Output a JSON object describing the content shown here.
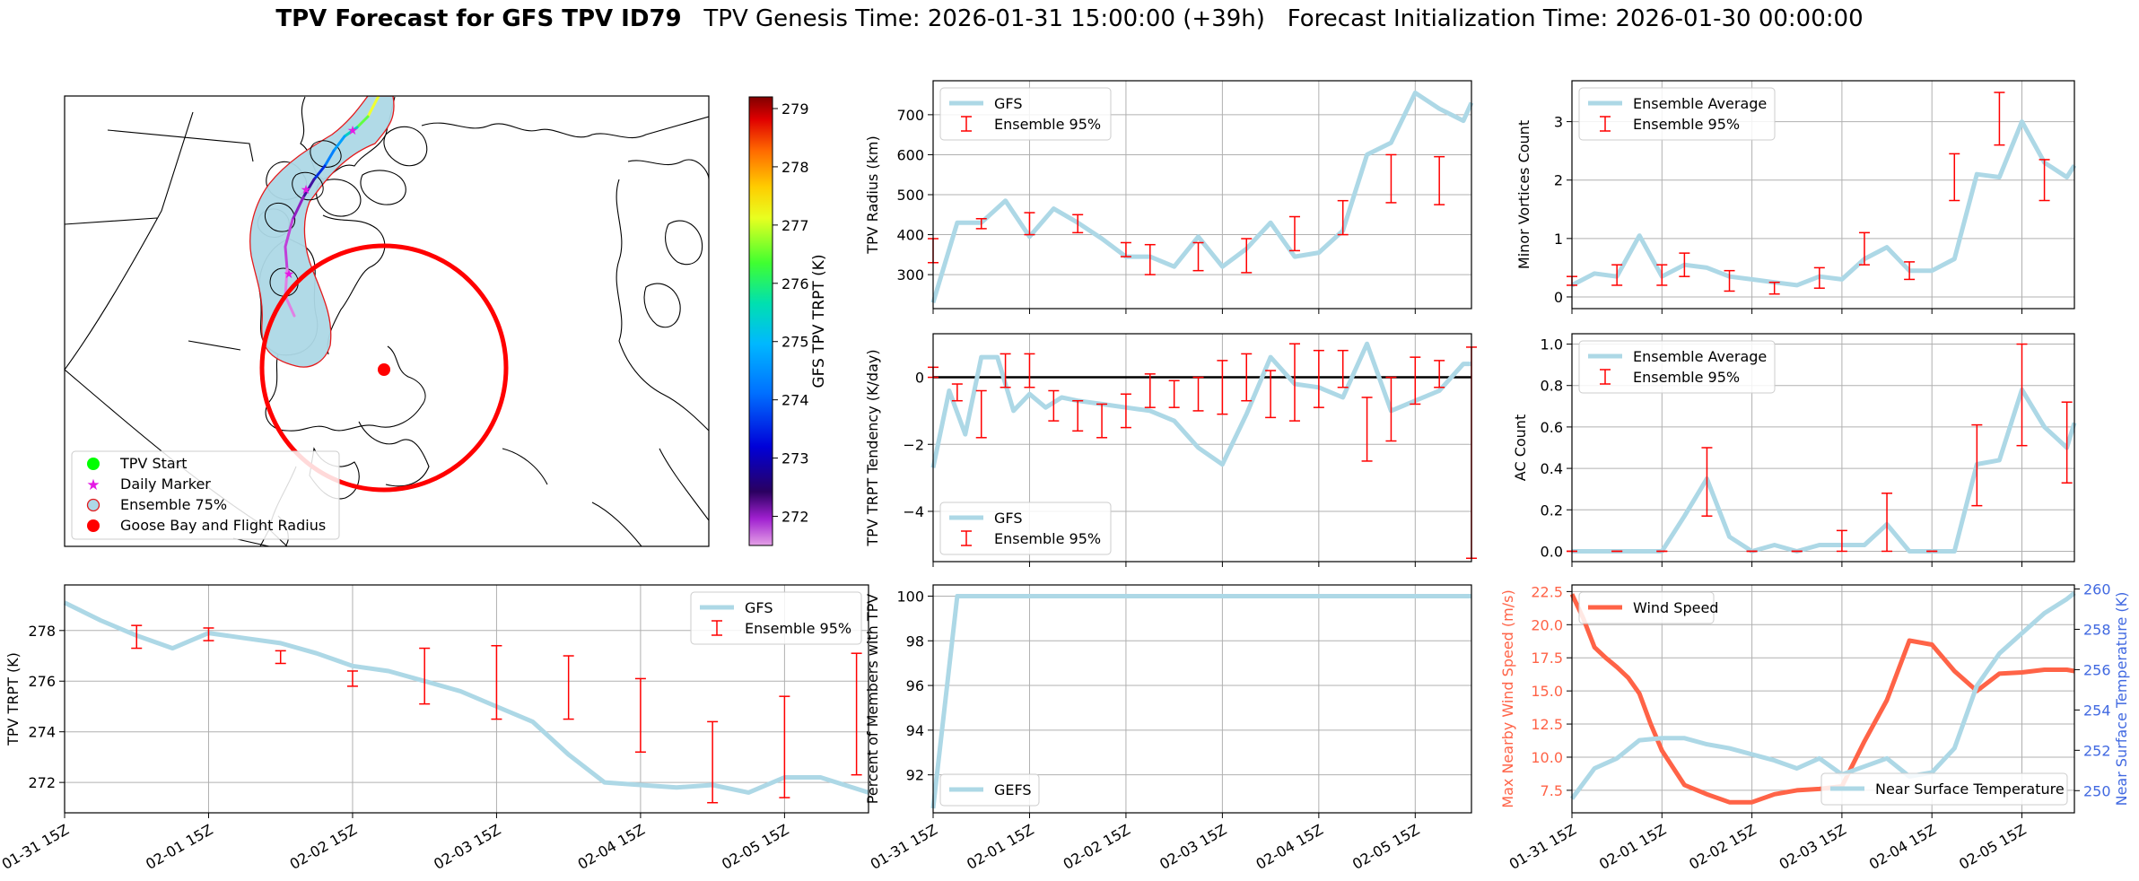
{
  "figure": {
    "title_bold": "TPV Forecast for GFS TPV ID79",
    "title_genesis": "TPV Genesis Time: 2026-01-31 15:00:00 (+39h)",
    "title_init": "Forecast Initialization Time: 2026-01-30 00:00:00"
  },
  "colors": {
    "series": "#add8e6",
    "error": "#ff0000",
    "wind": "#ff6347",
    "temp_axis": "#4169e1",
    "zero_line": "#000000"
  },
  "map": {
    "colorbar_label": "GFS TPV TRPT (K)",
    "colorbar_ticks": [
      "272",
      "273",
      "274",
      "275",
      "276",
      "277",
      "278",
      "279"
    ],
    "colorbar_range": [
      271.5,
      279.2
    ],
    "legend": [
      "TPV Start",
      "Daily Marker",
      "Ensemble 75%",
      "Goose Bay and Flight Radius"
    ]
  },
  "chart_data": [
    {
      "id": "trpt",
      "type": "line",
      "ylabel": "TPV TRPT (K)",
      "ylim": [
        270.8,
        279.8
      ],
      "yticks": [
        "272",
        "274",
        "276",
        "278"
      ],
      "xlim": [
        0,
        134
      ],
      "xtick_positions": [
        0,
        24,
        48,
        72,
        96,
        120
      ],
      "xtick_labels": [
        "01-31 15Z",
        "02-01 15Z",
        "02-02 15Z",
        "02-03 15Z",
        "02-04 15Z",
        "02-05 15Z"
      ],
      "legend": [
        "GFS",
        "Ensemble 95%"
      ],
      "series": [
        {
          "name": "GFS",
          "x": [
            0,
            6,
            12,
            18,
            24,
            30,
            36,
            42,
            48,
            54,
            60,
            66,
            72,
            78,
            84,
            90,
            96,
            102,
            108,
            114,
            120,
            126,
            134
          ],
          "values": [
            279.1,
            278.4,
            277.8,
            277.3,
            277.9,
            277.7,
            277.5,
            277.1,
            276.6,
            276.4,
            276.0,
            275.6,
            275.0,
            274.4,
            273.1,
            272.0,
            271.9,
            271.8,
            271.9,
            271.6,
            272.2,
            272.2,
            271.6
          ]
        }
      ],
      "errorbars": [
        {
          "x": 12,
          "lo": 277.3,
          "hi": 278.2
        },
        {
          "x": 24,
          "lo": 277.6,
          "hi": 278.1
        },
        {
          "x": 36,
          "lo": 276.7,
          "hi": 277.2
        },
        {
          "x": 48,
          "lo": 275.8,
          "hi": 276.4
        },
        {
          "x": 60,
          "lo": 275.1,
          "hi": 277.3
        },
        {
          "x": 72,
          "lo": 274.5,
          "hi": 277.4
        },
        {
          "x": 84,
          "lo": 274.5,
          "hi": 277.0
        },
        {
          "x": 96,
          "lo": 273.2,
          "hi": 276.1
        },
        {
          "x": 108,
          "lo": 271.2,
          "hi": 274.4
        },
        {
          "x": 120,
          "lo": 271.4,
          "hi": 275.4
        },
        {
          "x": 132,
          "lo": 272.3,
          "hi": 277.1
        }
      ]
    },
    {
      "id": "radius",
      "type": "line",
      "ylabel": "TPV Radius (km)",
      "ylim": [
        215,
        785
      ],
      "yticks": [
        "300",
        "400",
        "500",
        "600",
        "700"
      ],
      "xlim": [
        0,
        134
      ],
      "legend": [
        "GFS",
        "Ensemble 95%"
      ],
      "series": [
        {
          "name": "GFS",
          "x": [
            0,
            6,
            12,
            18,
            24,
            30,
            36,
            42,
            48,
            54,
            60,
            66,
            72,
            78,
            84,
            90,
            96,
            102,
            108,
            114,
            120,
            126,
            132,
            134
          ],
          "values": [
            230,
            430,
            430,
            485,
            395,
            465,
            430,
            390,
            345,
            345,
            320,
            395,
            320,
            365,
            430,
            345,
            355,
            410,
            600,
            630,
            755,
            715,
            685,
            730
          ]
        }
      ],
      "errorbars": [
        {
          "x": 0,
          "lo": 330,
          "hi": 390
        },
        {
          "x": 12,
          "lo": 415,
          "hi": 440
        },
        {
          "x": 24,
          "lo": 400,
          "hi": 455
        },
        {
          "x": 36,
          "lo": 405,
          "hi": 450
        },
        {
          "x": 48,
          "lo": 345,
          "hi": 380
        },
        {
          "x": 54,
          "lo": 300,
          "hi": 375
        },
        {
          "x": 66,
          "lo": 310,
          "hi": 380
        },
        {
          "x": 78,
          "lo": 305,
          "hi": 390
        },
        {
          "x": 90,
          "lo": 360,
          "hi": 445
        },
        {
          "x": 102,
          "lo": 400,
          "hi": 485
        },
        {
          "x": 114,
          "lo": 480,
          "hi": 600
        },
        {
          "x": 126,
          "lo": 475,
          "hi": 595
        }
      ]
    },
    {
      "id": "tendency",
      "type": "line",
      "ylabel": "TPV TRPT Tendency (K/day)",
      "ylim": [
        -5.5,
        1.3
      ],
      "yticks": [
        "−4",
        "−2",
        "0"
      ],
      "xlim": [
        0,
        134
      ],
      "legend": [
        "GFS",
        "Ensemble 95%"
      ],
      "zero_line": 0,
      "series": [
        {
          "name": "GFS",
          "x": [
            0,
            4,
            8,
            12,
            16,
            20,
            24,
            28,
            32,
            36,
            42,
            48,
            54,
            60,
            66,
            72,
            78,
            84,
            90,
            96,
            102,
            108,
            114,
            120,
            126,
            132,
            134
          ],
          "values": [
            -2.7,
            -0.4,
            -1.7,
            0.6,
            0.6,
            -1.0,
            -0.5,
            -0.9,
            -0.6,
            -0.7,
            -0.8,
            -0.9,
            -1.0,
            -1.3,
            -2.1,
            -2.6,
            -1.1,
            0.6,
            -0.2,
            -0.3,
            -0.6,
            1.0,
            -1.0,
            -0.7,
            -0.4,
            0.4,
            0.4
          ]
        }
      ],
      "errorbars": [
        {
          "x": 0,
          "lo": 0.0,
          "hi": 0.3
        },
        {
          "x": 6,
          "lo": -0.7,
          "hi": -0.2
        },
        {
          "x": 12,
          "lo": -1.8,
          "hi": -0.4
        },
        {
          "x": 18,
          "lo": -0.3,
          "hi": 0.7
        },
        {
          "x": 24,
          "lo": -0.3,
          "hi": 0.7
        },
        {
          "x": 30,
          "lo": -1.3,
          "hi": -0.4
        },
        {
          "x": 36,
          "lo": -1.6,
          "hi": -0.7
        },
        {
          "x": 42,
          "lo": -1.8,
          "hi": -0.8
        },
        {
          "x": 48,
          "lo": -1.5,
          "hi": -0.5
        },
        {
          "x": 54,
          "lo": -0.9,
          "hi": 0.1
        },
        {
          "x": 60,
          "lo": -0.9,
          "hi": -0.1
        },
        {
          "x": 66,
          "lo": -1.0,
          "hi": 0.0
        },
        {
          "x": 72,
          "lo": -1.1,
          "hi": 0.5
        },
        {
          "x": 78,
          "lo": -0.7,
          "hi": 0.7
        },
        {
          "x": 84,
          "lo": -1.2,
          "hi": 0.2
        },
        {
          "x": 90,
          "lo": -1.3,
          "hi": 1.0
        },
        {
          "x": 96,
          "lo": -0.9,
          "hi": 0.8
        },
        {
          "x": 102,
          "lo": -0.3,
          "hi": 0.8
        },
        {
          "x": 108,
          "lo": -2.5,
          "hi": -0.6
        },
        {
          "x": 114,
          "lo": -1.9,
          "hi": 0.0
        },
        {
          "x": 120,
          "lo": -0.8,
          "hi": 0.6
        },
        {
          "x": 126,
          "lo": -0.3,
          "hi": 0.5
        },
        {
          "x": 134,
          "lo": -5.4,
          "hi": 0.9
        }
      ]
    },
    {
      "id": "members",
      "type": "line",
      "ylabel": "Percent of Members with TPV",
      "ylim": [
        90.3,
        100.5
      ],
      "yticks": [
        "92",
        "94",
        "96",
        "98",
        "100"
      ],
      "xlim": [
        0,
        134
      ],
      "xtick_positions": [
        0,
        24,
        48,
        72,
        96,
        120
      ],
      "xtick_labels": [
        "01-31 15Z",
        "02-01 15Z",
        "02-02 15Z",
        "02-03 15Z",
        "02-04 15Z",
        "02-05 15Z"
      ],
      "legend": [
        "GEFS"
      ],
      "series": [
        {
          "name": "GEFS",
          "x": [
            0,
            6,
            12,
            134
          ],
          "values": [
            90.5,
            100,
            100,
            100
          ]
        }
      ]
    },
    {
      "id": "minor",
      "type": "line",
      "ylabel": "Minor Vortices Count",
      "ylim": [
        -0.2,
        3.7
      ],
      "yticks": [
        "0",
        "1",
        "2",
        "3"
      ],
      "xlim": [
        0,
        134
      ],
      "legend": [
        "Ensemble Average",
        "Ensemble 95%"
      ],
      "series": [
        {
          "name": "Ensemble Average",
          "x": [
            0,
            6,
            12,
            18,
            24,
            30,
            36,
            42,
            48,
            54,
            60,
            66,
            72,
            78,
            84,
            90,
            96,
            102,
            108,
            114,
            120,
            126,
            132,
            134
          ],
          "values": [
            0.2,
            0.4,
            0.35,
            1.05,
            0.35,
            0.55,
            0.5,
            0.35,
            0.3,
            0.25,
            0.2,
            0.35,
            0.3,
            0.65,
            0.85,
            0.45,
            0.45,
            0.65,
            2.1,
            2.05,
            3.0,
            2.3,
            2.05,
            2.25
          ]
        }
      ],
      "errorbars": [
        {
          "x": 0,
          "lo": 0.2,
          "hi": 0.35
        },
        {
          "x": 12,
          "lo": 0.2,
          "hi": 0.55
        },
        {
          "x": 24,
          "lo": 0.2,
          "hi": 0.55
        },
        {
          "x": 30,
          "lo": 0.35,
          "hi": 0.75
        },
        {
          "x": 42,
          "lo": 0.1,
          "hi": 0.45
        },
        {
          "x": 54,
          "lo": 0.05,
          "hi": 0.25
        },
        {
          "x": 66,
          "lo": 0.15,
          "hi": 0.5
        },
        {
          "x": 78,
          "lo": 0.55,
          "hi": 1.1
        },
        {
          "x": 90,
          "lo": 0.3,
          "hi": 0.6
        },
        {
          "x": 102,
          "lo": 1.65,
          "hi": 2.45
        },
        {
          "x": 114,
          "lo": 2.6,
          "hi": 3.5
        },
        {
          "x": 126,
          "lo": 1.65,
          "hi": 2.35
        }
      ]
    },
    {
      "id": "ac",
      "type": "line",
      "ylabel": "AC Count",
      "ylim": [
        -0.05,
        1.05
      ],
      "yticks": [
        "0.0",
        "0.2",
        "0.4",
        "0.6",
        "0.8",
        "1.0"
      ],
      "xlim": [
        0,
        134
      ],
      "legend": [
        "Ensemble Average",
        "Ensemble 95%"
      ],
      "series": [
        {
          "name": "Ensemble Average",
          "x": [
            0,
            6,
            12,
            18,
            24,
            30,
            36,
            42,
            48,
            54,
            60,
            66,
            72,
            78,
            84,
            90,
            96,
            102,
            108,
            114,
            120,
            126,
            132,
            134
          ],
          "values": [
            0.0,
            0.0,
            0.0,
            0.0,
            0.0,
            0.17,
            0.35,
            0.07,
            0.0,
            0.03,
            0.0,
            0.03,
            0.03,
            0.03,
            0.13,
            0.0,
            0.0,
            0.0,
            0.42,
            0.44,
            0.78,
            0.6,
            0.5,
            0.62
          ]
        }
      ],
      "errorbars": [
        {
          "x": 0,
          "lo": 0,
          "hi": 0
        },
        {
          "x": 12,
          "lo": 0,
          "hi": 0
        },
        {
          "x": 24,
          "lo": 0,
          "hi": 0
        },
        {
          "x": 36,
          "lo": 0.17,
          "hi": 0.5
        },
        {
          "x": 48,
          "lo": 0,
          "hi": 0
        },
        {
          "x": 60,
          "lo": 0,
          "hi": 0
        },
        {
          "x": 72,
          "lo": 0,
          "hi": 0.1
        },
        {
          "x": 84,
          "lo": 0,
          "hi": 0.28
        },
        {
          "x": 96,
          "lo": 0,
          "hi": 0
        },
        {
          "x": 108,
          "lo": 0.22,
          "hi": 0.61
        },
        {
          "x": 120,
          "lo": 0.51,
          "hi": 1.0
        },
        {
          "x": 132,
          "lo": 0.33,
          "hi": 0.72
        }
      ]
    },
    {
      "id": "wind_temp",
      "type": "line",
      "ylabel": "Max Nearby Wind Speed (m/s)",
      "ylim": [
        5.8,
        23.0
      ],
      "yticks": [
        "7.5",
        "10.0",
        "12.5",
        "15.0",
        "17.5",
        "20.0",
        "22.5"
      ],
      "ylabel2": "Near Surface Temperature (K)",
      "ylim2": [
        248.9,
        260.2
      ],
      "yticks2": [
        "250",
        "252",
        "254",
        "256",
        "258",
        "260"
      ],
      "xlim": [
        0,
        134
      ],
      "xtick_positions": [
        0,
        24,
        48,
        72,
        96,
        120
      ],
      "xtick_labels": [
        "01-31 15Z",
        "02-01 15Z",
        "02-02 15Z",
        "02-03 15Z",
        "02-04 15Z",
        "02-05 15Z"
      ],
      "legend": [
        "Wind Speed",
        "Near Surface Temperature"
      ],
      "series": [
        {
          "name": "Wind Speed",
          "axis": "left",
          "x": [
            0,
            3,
            6,
            9,
            12,
            15,
            18,
            21,
            24,
            30,
            36,
            42,
            48,
            54,
            60,
            66,
            72,
            78,
            84,
            90,
            96,
            102,
            108,
            114,
            120,
            126,
            132,
            134
          ],
          "values": [
            22.3,
            20.5,
            18.3,
            17.5,
            16.8,
            16.0,
            14.8,
            12.5,
            10.5,
            7.9,
            7.2,
            6.6,
            6.6,
            7.2,
            7.5,
            7.6,
            7.8,
            11.2,
            14.3,
            18.8,
            18.5,
            16.5,
            15.0,
            16.3,
            16.4,
            16.6,
            16.6,
            16.5
          ]
        },
        {
          "name": "Near Surface Temperature",
          "axis": "right",
          "x": [
            0,
            6,
            12,
            18,
            24,
            30,
            36,
            42,
            48,
            54,
            60,
            66,
            72,
            78,
            84,
            90,
            96,
            102,
            108,
            114,
            120,
            126,
            132,
            134
          ],
          "values": [
            249.6,
            251.1,
            251.6,
            252.5,
            252.6,
            252.6,
            252.3,
            252.1,
            251.8,
            251.5,
            251.1,
            251.6,
            250.8,
            251.2,
            251.6,
            250.7,
            250.9,
            252.1,
            255.2,
            256.8,
            257.8,
            258.8,
            259.5,
            259.8
          ]
        }
      ]
    }
  ]
}
